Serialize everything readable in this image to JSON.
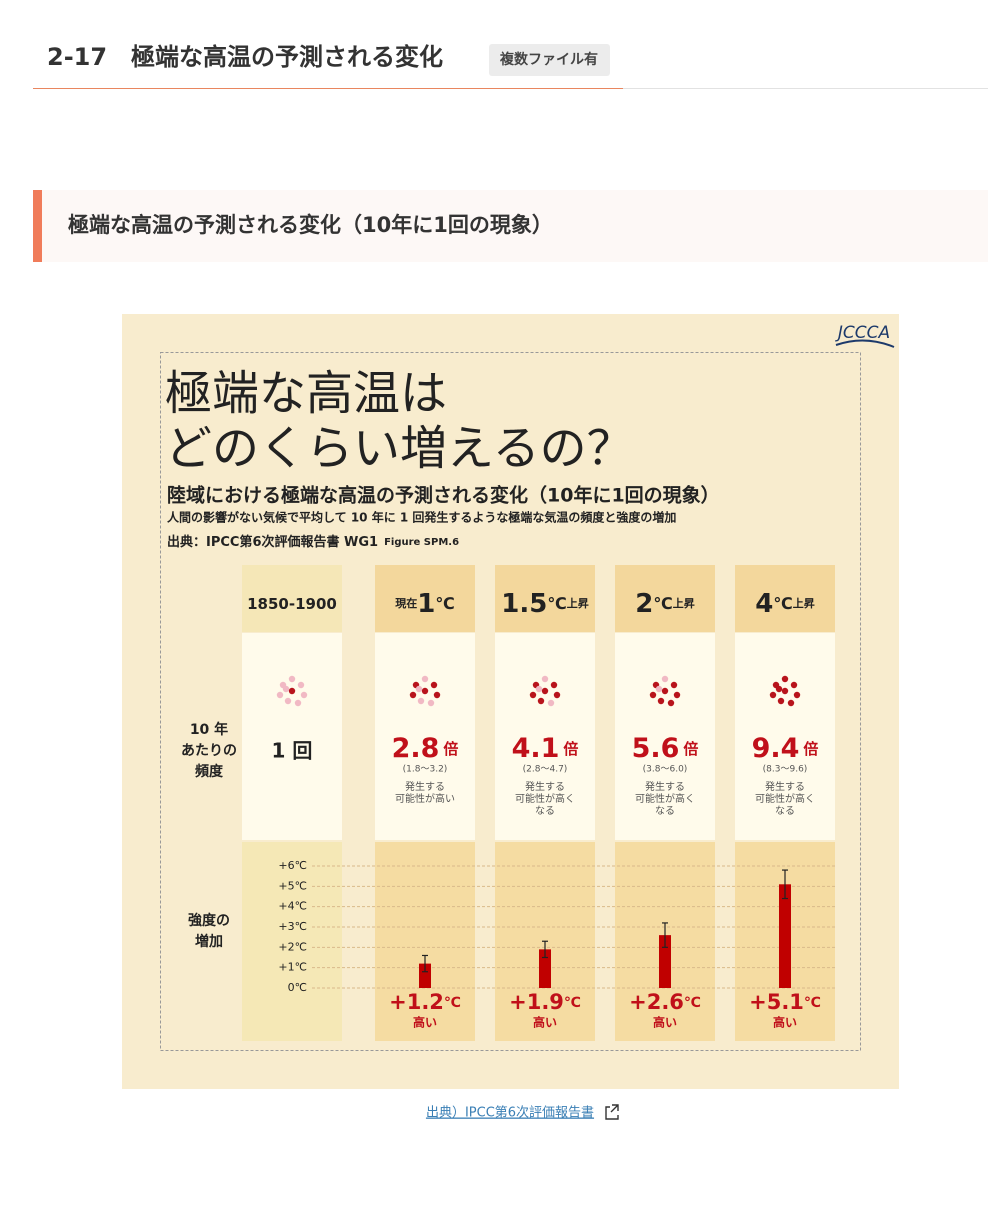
{
  "header": {
    "title": "2-17　極端な高温の予測される変化",
    "badge": "複数ファイル有"
  },
  "section": {
    "title": "極端な高温の予測される変化（10年に1回の現象）"
  },
  "infographic": {
    "logo": "JCCCA",
    "headline": [
      "極端な高温は",
      "どのくらい増えるの？"
    ],
    "subtitle": "陸域における極端な高温の予測される変化（10年に1回の現象）",
    "description": "人間の影響がない気候で平均して 10 年に 1 回発生するような極端な気温の頻度と強度の増加",
    "source": "出典：IPCC第6次評価報告書 WG1",
    "figure": "Figure SPM.6",
    "row_labels": {
      "frequency": [
        "10 年",
        "あたりの",
        "頻度"
      ],
      "intensity": [
        "強度の",
        "増加"
      ]
    },
    "columns": [
      {
        "label": "1850-1900",
        "frequency": "1 回"
      },
      {
        "prefix": "現在",
        "big": "1",
        "unit": "℃",
        "frequency": "2.8",
        "times": "倍",
        "range": "(1.8～3.2)",
        "note": [
          "発生する",
          "可能性が高い"
        ]
      },
      {
        "big": "1.5",
        "unit": "℃",
        "suffix": "上昇",
        "frequency": "4.1",
        "times": "倍",
        "range": "(2.8～4.7)",
        "note": [
          "発生する",
          "可能性が高く",
          "なる"
        ]
      },
      {
        "big": "2",
        "unit": "℃",
        "suffix": "上昇",
        "frequency": "5.6",
        "times": "倍",
        "range": "(3.8～6.0)",
        "note": [
          "発生する",
          "可能性が高く",
          "なる"
        ]
      },
      {
        "big": "4",
        "unit": "℃",
        "suffix": "上昇",
        "frequency": "9.4",
        "times": "倍",
        "range": "(8.3～9.6)",
        "note": [
          "発生する",
          "可能性が高く",
          "なる"
        ]
      }
    ]
  },
  "chart_data": {
    "type": "bar",
    "categories": [
      null,
      null,
      null,
      null
    ],
    "values": [
      1.2,
      1.9,
      2.6,
      5.1
    ],
    "errors": [
      0.4,
      0.4,
      0.6,
      0.7
    ],
    "value_labels": [
      "+1.2",
      "+1.9",
      "+2.6",
      "+5.1"
    ],
    "unit": "℃",
    "value_note": "高い",
    "color": "#c00000",
    "ylim": [
      0,
      6
    ],
    "yticks": [
      {
        "value": 0,
        "label": "0℃"
      },
      {
        "value": 1,
        "label": "+1℃"
      },
      {
        "value": 2,
        "label": "+2℃"
      },
      {
        "value": 3,
        "label": "+3℃"
      },
      {
        "value": 4,
        "label": "+4℃"
      },
      {
        "value": 5,
        "label": "+5℃"
      },
      {
        "value": 6,
        "label": "+6℃"
      }
    ],
    "grid": true
  },
  "source_link": "出典）IPCC第6次評価報告書"
}
